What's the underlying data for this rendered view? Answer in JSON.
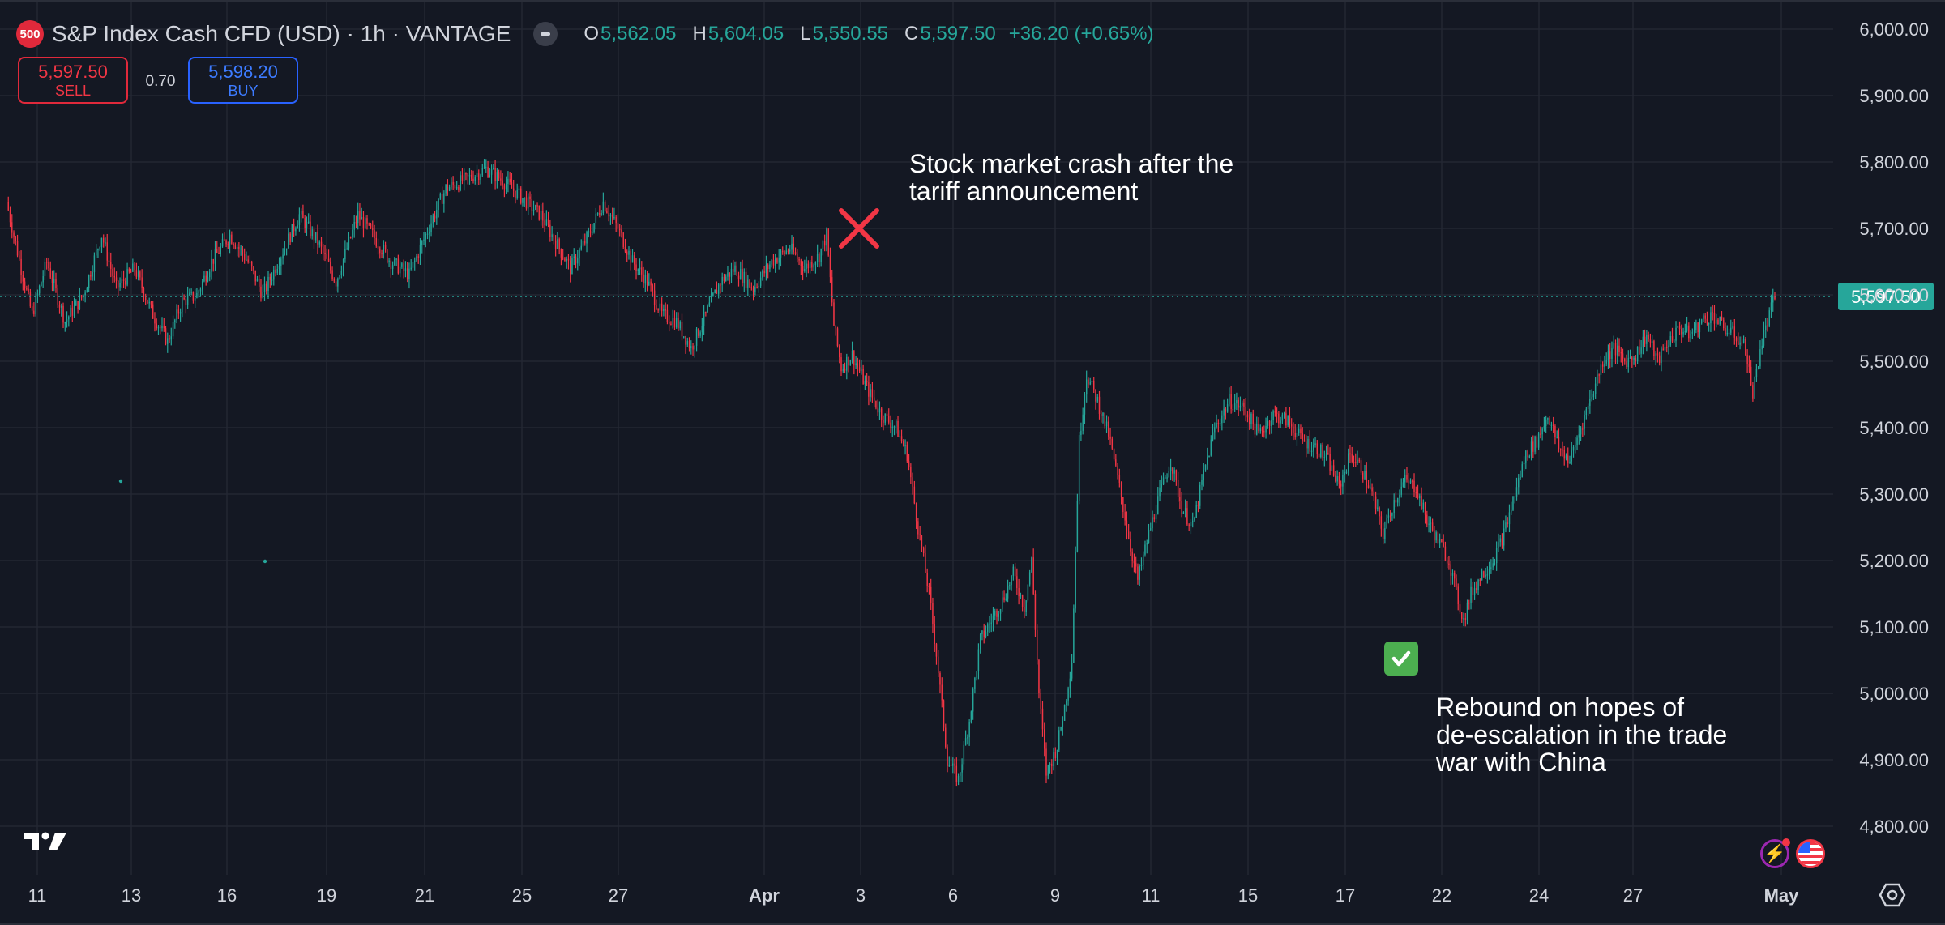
{
  "header": {
    "symbol_badge": "500",
    "title": "S&P Index Cash CFD (USD) · 1h · VANTAGE",
    "ohlc": {
      "o_label": "O",
      "o_value": "5,562.05",
      "h_label": "H",
      "h_value": "5,604.05",
      "l_label": "L",
      "l_value": "5,550.55",
      "c_label": "C",
      "c_value": "5,597.50",
      "change": "+36.20 (+0.65%)"
    }
  },
  "trade": {
    "sell_price": "5,597.50",
    "sell_label": "SELL",
    "spread": "0.70",
    "buy_price": "5,598.20",
    "buy_label": "BUY"
  },
  "annotations": {
    "crash_line1": "Stock market crash after the",
    "crash_line2": "tariff announcement",
    "rebound_line1": "Rebound on hopes of",
    "rebound_line2": "de-escalation in the trade",
    "rebound_line3": "war with China",
    "crash_marker_icon": "cross-icon",
    "rebound_marker_icon": "check-icon"
  },
  "icons": {
    "logo": "tradingview-logo-icon",
    "lightning": "lightning-icon",
    "flag": "us-flag-icon",
    "settings": "settings-icon"
  },
  "colors": {
    "background": "#141823",
    "up": "#26a69a",
    "down": "#f23645",
    "grid": "#232733",
    "axis_text": "#d1d4dc",
    "price_line": "#26a69a",
    "crash_marker": "#f23645",
    "check": "#4caf50"
  },
  "chart_data": {
    "type": "candlestick",
    "title": "S&P Index Cash CFD (USD) · 1h · VANTAGE",
    "interval": "1h",
    "ylim": [
      4780,
      6020
    ],
    "y_ticks": [
      "6,000.00",
      "5,900.00",
      "5,800.00",
      "5,700.00",
      "5,600.00",
      "5,500.00",
      "5,400.00",
      "5,300.00",
      "5,200.00",
      "5,100.00",
      "5,000.00",
      "4,900.00",
      "4,800.00"
    ],
    "y_tick_values": [
      6000,
      5900,
      5800,
      5700,
      5600,
      5500,
      5400,
      5300,
      5200,
      5100,
      5000,
      4900,
      4800
    ],
    "x_tick_labels": [
      "11",
      "13",
      "16",
      "19",
      "21",
      "25",
      "27",
      "Apr",
      "3",
      "6",
      "9",
      "11",
      "15",
      "17",
      "22",
      "24",
      "27",
      "May"
    ],
    "x_tick_bold": [
      "Apr",
      "May"
    ],
    "last_price": 5597.5,
    "last_price_label": "5,597.50",
    "grid": true,
    "price_path": [
      [
        0,
        5740
      ],
      [
        8,
        5640
      ],
      [
        14,
        5570
      ],
      [
        22,
        5650
      ],
      [
        32,
        5560
      ],
      [
        42,
        5600
      ],
      [
        52,
        5690
      ],
      [
        60,
        5610
      ],
      [
        70,
        5640
      ],
      [
        80,
        5570
      ],
      [
        88,
        5530
      ],
      [
        96,
        5590
      ],
      [
        104,
        5600
      ],
      [
        112,
        5650
      ],
      [
        122,
        5690
      ],
      [
        132,
        5650
      ],
      [
        140,
        5600
      ],
      [
        150,
        5660
      ],
      [
        160,
        5720
      ],
      [
        170,
        5680
      ],
      [
        180,
        5620
      ],
      [
        192,
        5720
      ],
      [
        200,
        5690
      ],
      [
        210,
        5650
      ],
      [
        220,
        5630
      ],
      [
        232,
        5710
      ],
      [
        240,
        5760
      ],
      [
        252,
        5775
      ],
      [
        262,
        5790
      ],
      [
        272,
        5770
      ],
      [
        284,
        5740
      ],
      [
        292,
        5720
      ],
      [
        300,
        5680
      ],
      [
        308,
        5640
      ],
      [
        318,
        5690
      ],
      [
        326,
        5740
      ],
      [
        334,
        5700
      ],
      [
        342,
        5650
      ],
      [
        350,
        5620
      ],
      [
        358,
        5570
      ],
      [
        366,
        5560
      ],
      [
        374,
        5520
      ],
      [
        382,
        5570
      ],
      [
        390,
        5620
      ],
      [
        398,
        5640
      ],
      [
        408,
        5610
      ],
      [
        418,
        5650
      ],
      [
        428,
        5670
      ],
      [
        436,
        5640
      ],
      [
        444,
        5660
      ],
      [
        448,
        5690
      ],
      [
        452,
        5555
      ],
      [
        456,
        5490
      ],
      [
        462,
        5510
      ],
      [
        470,
        5460
      ],
      [
        478,
        5420
      ],
      [
        486,
        5400
      ],
      [
        492,
        5360
      ],
      [
        498,
        5250
      ],
      [
        504,
        5150
      ],
      [
        508,
        5060
      ],
      [
        514,
        4900
      ],
      [
        520,
        4870
      ],
      [
        526,
        4960
      ],
      [
        532,
        5080
      ],
      [
        538,
        5110
      ],
      [
        544,
        5140
      ],
      [
        550,
        5180
      ],
      [
        556,
        5130
      ],
      [
        560,
        5200
      ],
      [
        564,
        5000
      ],
      [
        568,
        4880
      ],
      [
        574,
        4920
      ],
      [
        578,
        4980
      ],
      [
        582,
        5050
      ],
      [
        586,
        5380
      ],
      [
        590,
        5480
      ],
      [
        596,
        5440
      ],
      [
        602,
        5390
      ],
      [
        608,
        5310
      ],
      [
        614,
        5220
      ],
      [
        618,
        5170
      ],
      [
        624,
        5240
      ],
      [
        630,
        5300
      ],
      [
        636,
        5350
      ],
      [
        642,
        5280
      ],
      [
        648,
        5250
      ],
      [
        654,
        5330
      ],
      [
        660,
        5400
      ],
      [
        668,
        5440
      ],
      [
        676,
        5430
      ],
      [
        684,
        5390
      ],
      [
        692,
        5420
      ],
      [
        700,
        5410
      ],
      [
        708,
        5380
      ],
      [
        716,
        5370
      ],
      [
        722,
        5350
      ],
      [
        728,
        5310
      ],
      [
        734,
        5360
      ],
      [
        740,
        5340
      ],
      [
        746,
        5300
      ],
      [
        752,
        5240
      ],
      [
        758,
        5290
      ],
      [
        764,
        5320
      ],
      [
        770,
        5310
      ],
      [
        776,
        5260
      ],
      [
        782,
        5230
      ],
      [
        788,
        5200
      ],
      [
        792,
        5150
      ],
      [
        796,
        5110
      ],
      [
        800,
        5150
      ],
      [
        806,
        5180
      ],
      [
        812,
        5200
      ],
      [
        818,
        5240
      ],
      [
        824,
        5300
      ],
      [
        830,
        5360
      ],
      [
        836,
        5380
      ],
      [
        842,
        5420
      ],
      [
        848,
        5370
      ],
      [
        854,
        5350
      ],
      [
        860,
        5400
      ],
      [
        866,
        5450
      ],
      [
        872,
        5500
      ],
      [
        878,
        5520
      ],
      [
        884,
        5500
      ],
      [
        890,
        5510
      ],
      [
        896,
        5540
      ],
      [
        902,
        5500
      ],
      [
        908,
        5530
      ],
      [
        914,
        5550
      ],
      [
        920,
        5540
      ],
      [
        926,
        5560
      ],
      [
        932,
        5570
      ],
      [
        938,
        5550
      ],
      [
        944,
        5540
      ],
      [
        950,
        5520
      ],
      [
        954,
        5450
      ],
      [
        958,
        5520
      ],
      [
        962,
        5560
      ],
      [
        966,
        5597.5
      ]
    ]
  }
}
